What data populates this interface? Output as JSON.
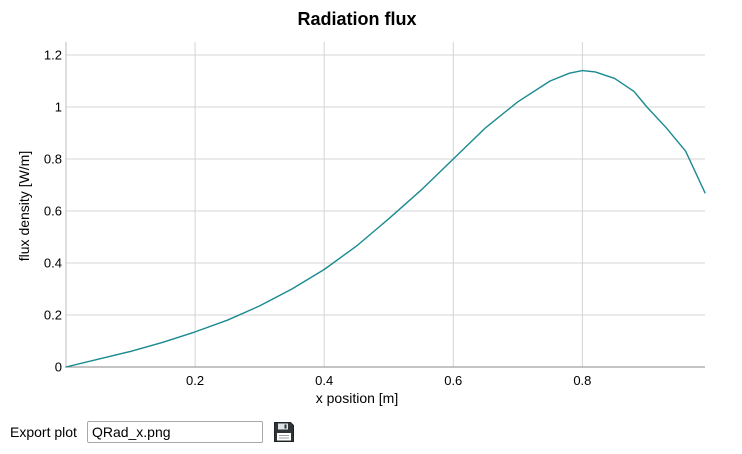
{
  "chart_data": {
    "type": "line",
    "title": "Radiation flux",
    "xlabel": "x position [m]",
    "ylabel": "flux density [W/m]",
    "xlim": [
      0.0,
      0.99
    ],
    "ylim": [
      0,
      1.25
    ],
    "xticks": [
      0.2,
      0.4,
      0.6,
      0.8
    ],
    "xtick_labels": [
      "0.2",
      "0.4",
      "0.6",
      "0.8"
    ],
    "yticks": [
      0,
      0.2,
      0.4,
      0.6,
      0.8,
      1,
      1.2
    ],
    "ytick_labels": [
      "0",
      "0.2",
      "0.4",
      "0.6",
      "0.8",
      "1",
      "1.2"
    ],
    "grid": true,
    "line_color": "#1a8a91",
    "series": [
      {
        "x": [
          0.0,
          0.05,
          0.1,
          0.15,
          0.2,
          0.25,
          0.3,
          0.35,
          0.4,
          0.45,
          0.5,
          0.55,
          0.6,
          0.65,
          0.7,
          0.75,
          0.78,
          0.8,
          0.82,
          0.85,
          0.88,
          0.9,
          0.93,
          0.96,
          0.99
        ],
        "y": [
          0.0,
          0.03,
          0.06,
          0.095,
          0.135,
          0.18,
          0.235,
          0.3,
          0.375,
          0.465,
          0.57,
          0.68,
          0.8,
          0.92,
          1.02,
          1.1,
          1.13,
          1.14,
          1.135,
          1.11,
          1.06,
          1.0,
          0.92,
          0.83,
          0.67
        ]
      }
    ]
  },
  "export": {
    "label": "Export plot",
    "filename": "QRad_x.png",
    "save_icon": "floppy-disk-icon"
  }
}
